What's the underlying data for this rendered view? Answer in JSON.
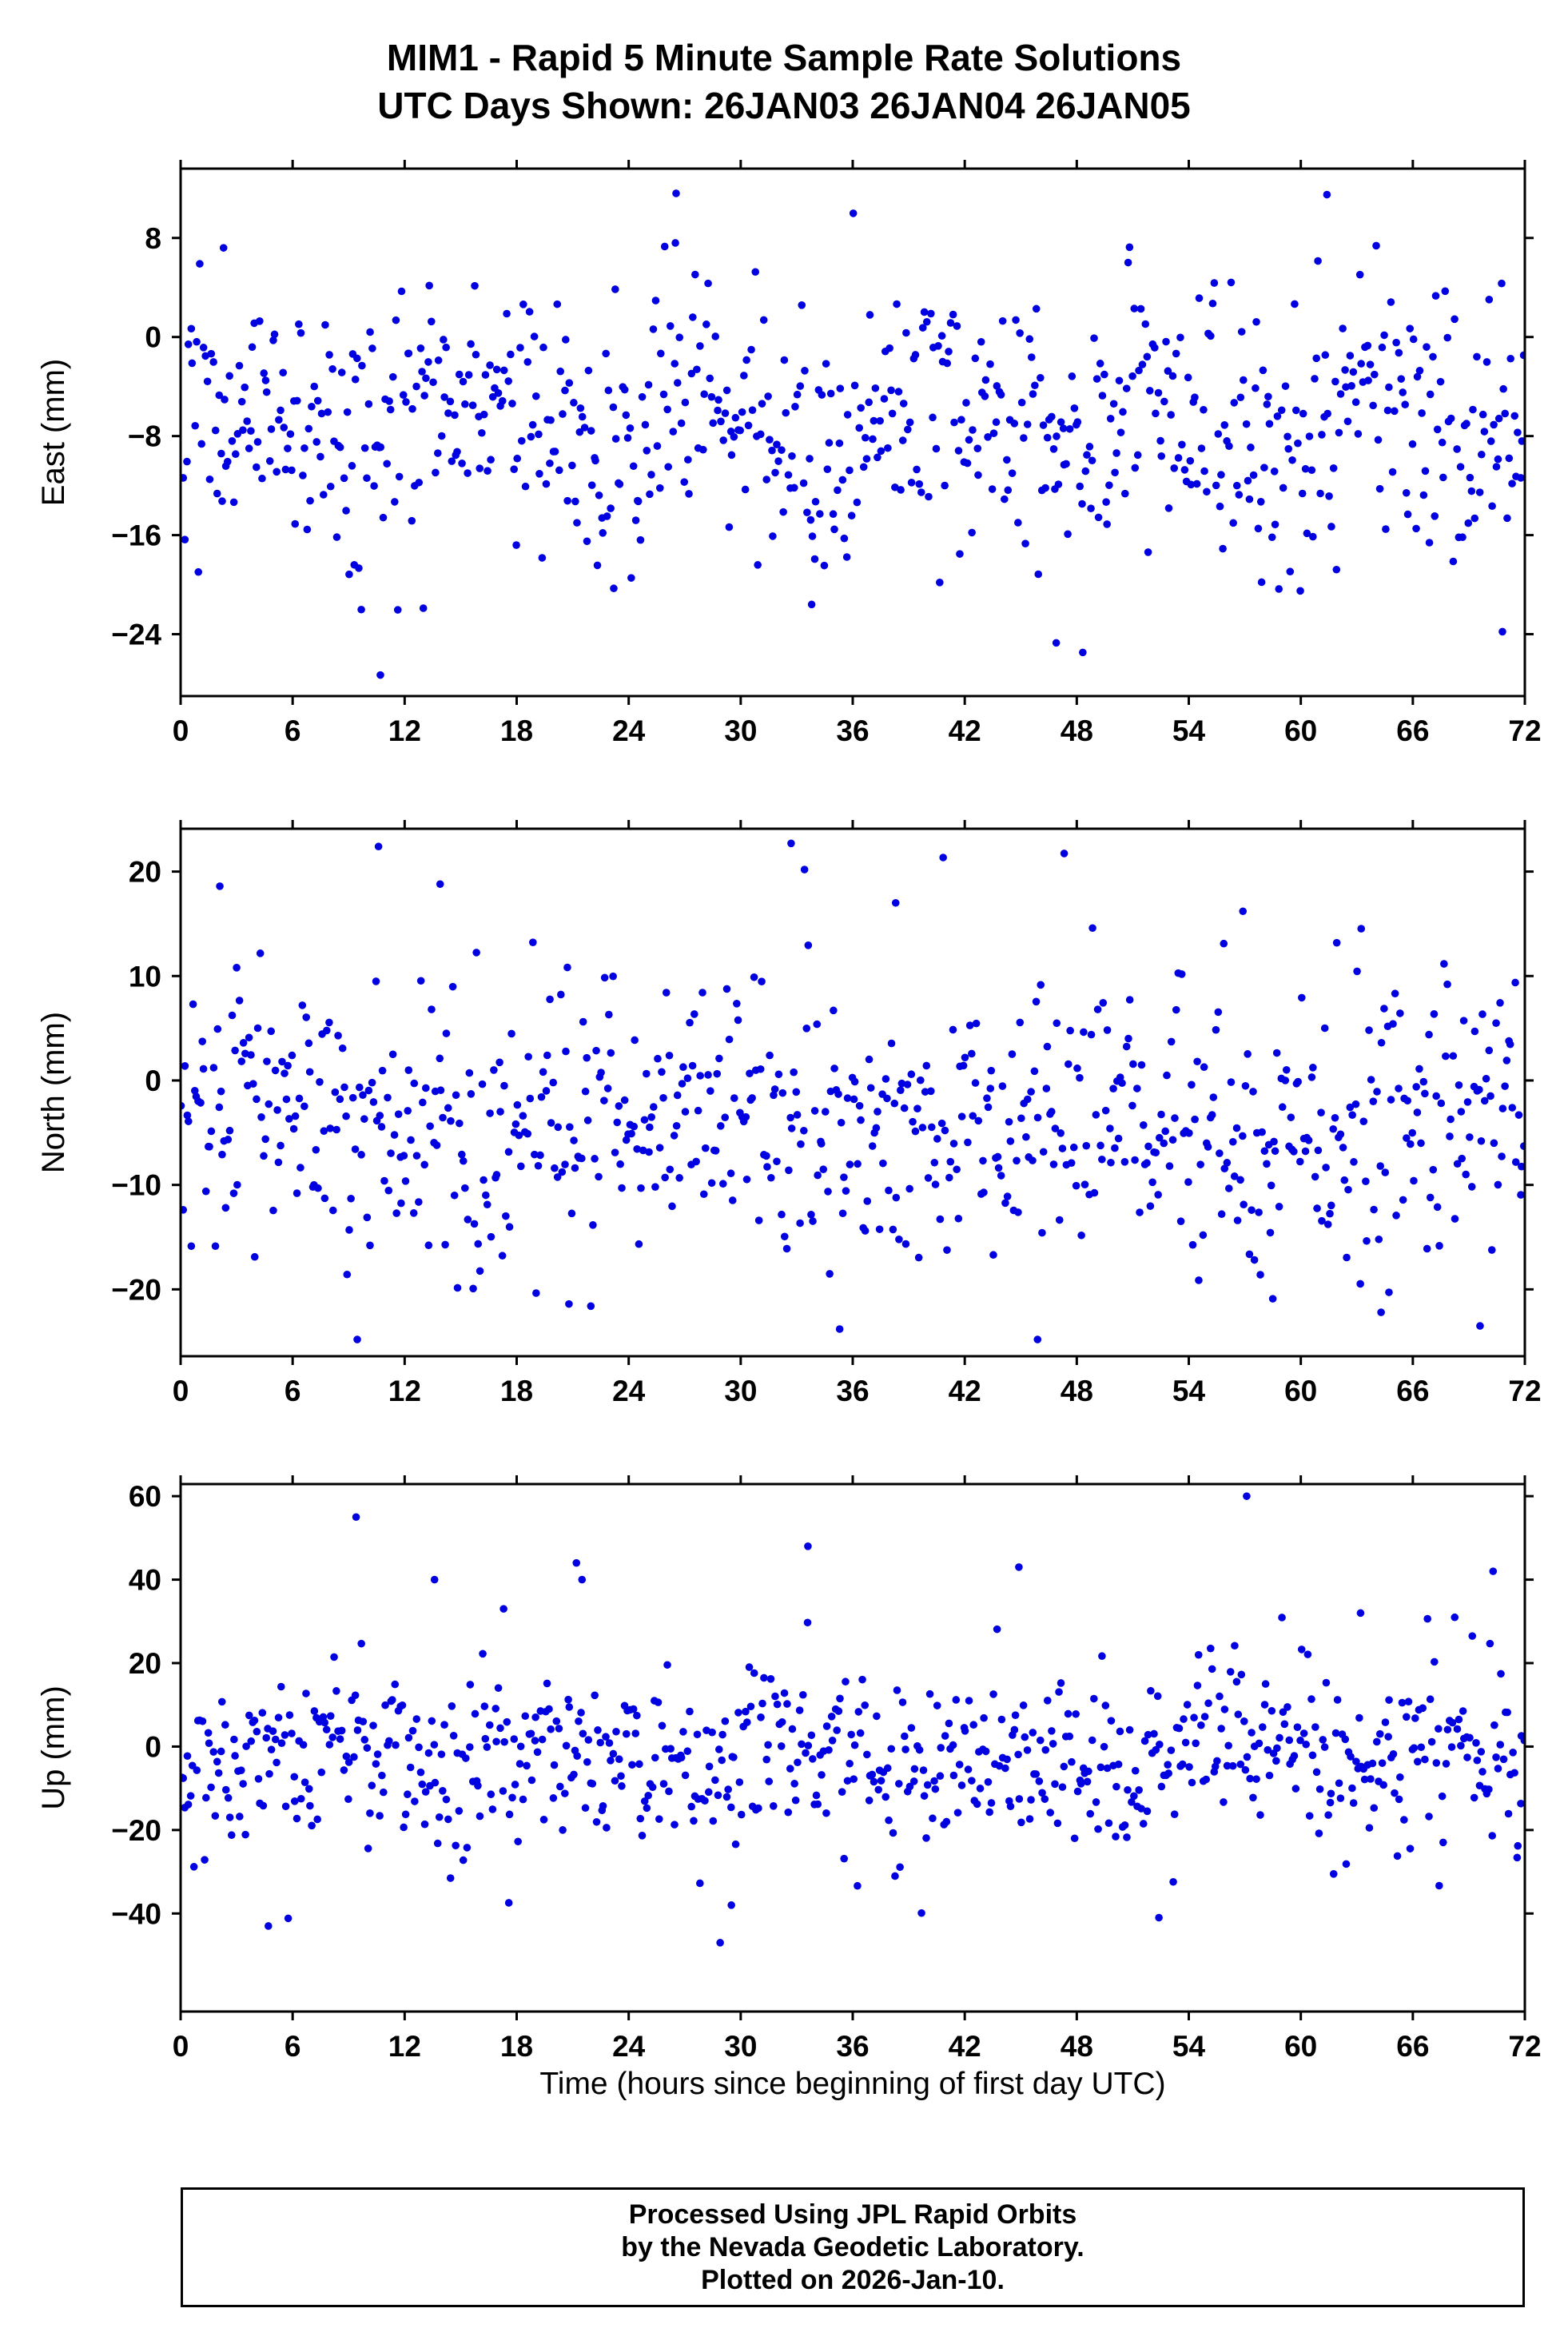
{
  "header": {
    "line1": "MIM1 - Rapid 5 Minute Sample Rate Solutions",
    "line2": "UTC Days Shown:  26JAN03 26JAN04 26JAN05"
  },
  "footer": {
    "line1": "Processed Using JPL Rapid Orbits",
    "line2": "by the Nevada Geodetic Laboratory.",
    "line3": "Plotted on 2026-Jan-10."
  },
  "colors": {
    "point": "#0000E0",
    "frame": "#000000",
    "background": "#FFFFFF"
  },
  "x_axis": {
    "label": "Time (hours since beginning of first day UTC)",
    "lim": [
      0,
      72
    ],
    "ticks": [
      0,
      6,
      12,
      18,
      24,
      30,
      36,
      42,
      48,
      54,
      60,
      66,
      72
    ]
  },
  "chart_data": [
    {
      "name": "east",
      "type": "scatter",
      "ylabel": "East (mm)",
      "ylim": [
        -29.0,
        13.6
      ],
      "yticks": [
        8,
        0,
        -8,
        -16,
        -24
      ],
      "marker": {
        "shape": "circle",
        "radius_px": 4.8
      },
      "generator": {
        "seed": 101,
        "n": 720,
        "mean": -6.8,
        "std": 5.2,
        "tail_frac": 0.06,
        "tail_std": 9.0,
        "clip": [
          -27.5,
          11.6
        ],
        "wave": {
          "amplitude": 1.8,
          "period": 12,
          "phase_hour": 4
        }
      },
      "outliers": [
        [
          2.3,
          7.2
        ],
        [
          26.5,
          7.6
        ],
        [
          61.4,
          11.5
        ],
        [
          10.7,
          -27.3
        ],
        [
          9.3,
          -18.4
        ],
        [
          46.9,
          -24.7
        ],
        [
          70.8,
          -23.8
        ],
        [
          23.2,
          -20.3
        ],
        [
          33.8,
          -21.6
        ],
        [
          57.9,
          -19.8
        ],
        [
          13.0,
          -21.9
        ]
      ]
    },
    {
      "name": "north",
      "type": "scatter",
      "ylabel": "North (mm)",
      "ylim": [
        -26.4,
        24.1
      ],
      "yticks": [
        20,
        10,
        0,
        -10,
        -20
      ],
      "marker": {
        "shape": "circle",
        "radius_px": 4.8
      },
      "generator": {
        "seed": 202,
        "n": 720,
        "mean": -3.8,
        "std": 6.2,
        "tail_frac": 0.07,
        "tail_std": 10.0,
        "clip": [
          -24.8,
          22.7
        ],
        "wave": {
          "amplitude": 1.2,
          "period": 24,
          "phase_hour": 2
        }
      },
      "outliers": [
        [
          2.1,
          18.6
        ],
        [
          10.6,
          22.4
        ],
        [
          32.7,
          22.7
        ],
        [
          13.9,
          18.8
        ],
        [
          38.3,
          17.0
        ],
        [
          56.9,
          16.2
        ],
        [
          3.0,
          10.8
        ],
        [
          35.3,
          -23.8
        ],
        [
          45.9,
          -24.8
        ],
        [
          69.6,
          -23.5
        ],
        [
          20.8,
          -21.4
        ],
        [
          58.5,
          -20.9
        ],
        [
          64.3,
          -22.2
        ]
      ]
    },
    {
      "name": "up",
      "type": "scatter",
      "ylabel": "Up (mm)",
      "ylim": [
        -63.5,
        62.9
      ],
      "yticks": [
        60,
        40,
        20,
        0,
        -20,
        -40
      ],
      "marker": {
        "shape": "circle",
        "radius_px": 4.8
      },
      "generator": {
        "seed": 303,
        "n": 720,
        "mean": -3.5,
        "std": 10.0,
        "tail_frac": 0.1,
        "tail_std": 20.0,
        "clip": [
          -47.5,
          60.5
        ],
        "wave": {
          "amplitude": 3.0,
          "period": 12,
          "phase_hour": 9
        }
      },
      "outliers": [
        [
          9.4,
          55
        ],
        [
          57.1,
          60
        ],
        [
          33.6,
          48
        ],
        [
          21.2,
          44
        ],
        [
          21.5,
          40
        ],
        [
          44.9,
          43
        ],
        [
          70.3,
          42
        ],
        [
          13.6,
          40
        ],
        [
          17.3,
          33
        ],
        [
          63.2,
          32
        ],
        [
          28.9,
          -47
        ],
        [
          52.4,
          -41
        ],
        [
          4.7,
          -43
        ],
        [
          29.5,
          -38
        ]
      ]
    }
  ]
}
